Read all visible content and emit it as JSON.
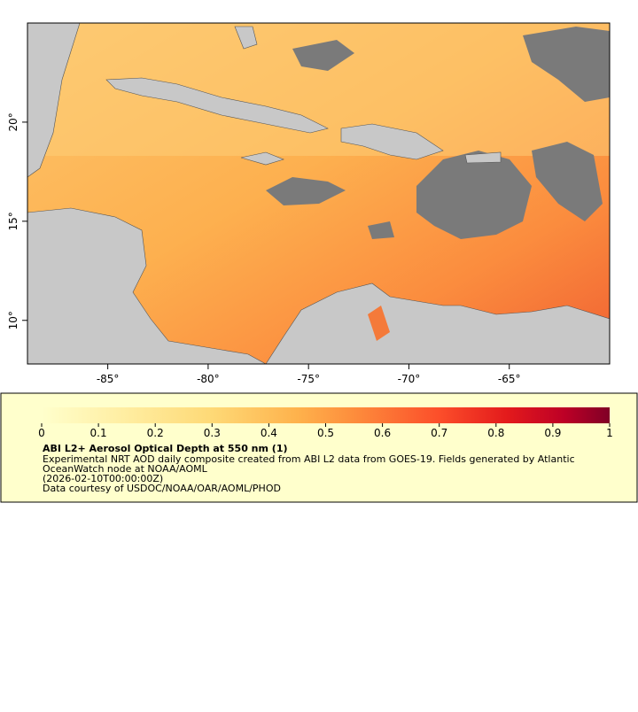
{
  "map": {
    "xlim": [
      -89,
      -60
    ],
    "ylim": [
      7.8,
      25
    ],
    "xticks": [
      {
        "value": -85,
        "label": "-85°"
      },
      {
        "value": -80,
        "label": "-80°"
      },
      {
        "value": -75,
        "label": "-75°"
      },
      {
        "value": -70,
        "label": "-70°"
      },
      {
        "value": -65,
        "label": "-65°"
      }
    ],
    "yticks": [
      {
        "value": 10,
        "label": "10°"
      },
      {
        "value": 15,
        "label": "15°"
      },
      {
        "value": 20,
        "label": "20°"
      }
    ]
  },
  "colorbar": {
    "lim": [
      0,
      1
    ],
    "ticks": [
      0,
      0.1,
      0.2,
      0.3,
      0.4,
      0.5,
      0.6,
      0.7,
      0.8,
      0.9,
      1
    ]
  },
  "legend": {
    "title": "ABI L2+ Aerosol Optical Depth at 550 nm (1)",
    "lines": [
      "Experimental NRT AOD daily composite created from ABI L2 data from GOES-19. Fields generated by Atlantic",
      "OceanWatch node at NOAA/AOML",
      "(2026-02-10T00:00:00Z)",
      "Data courtesy of USDOC/NOAA/OAR/AOML/PHOD"
    ]
  }
}
